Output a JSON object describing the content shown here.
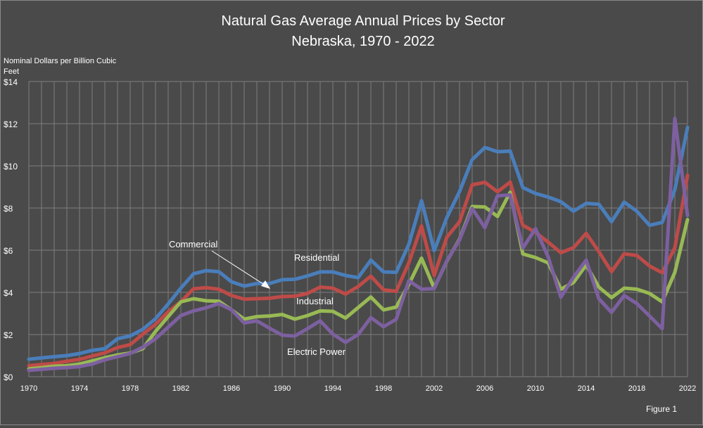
{
  "chart_data": {
    "type": "line",
    "title_line1": "Natural Gas Average Annual Prices by Sector",
    "title_line2": "Nebraska, 1970 - 2022",
    "ylabel_line1": "Nominal Dollars per Billion Cubic",
    "ylabel_line2": "Feet",
    "footnote": "Figure 1",
    "xlim": [
      1970,
      2022
    ],
    "ylim": [
      0,
      14
    ],
    "yticks": [
      0,
      2,
      4,
      6,
      8,
      10,
      12,
      14
    ],
    "ytick_labels": [
      "$0",
      "$2",
      "$4",
      "$6",
      "$8",
      "$10",
      "$12",
      "$14"
    ],
    "xticks": [
      1970,
      1974,
      1978,
      1982,
      1986,
      1990,
      1994,
      1998,
      2002,
      2006,
      2010,
      2014,
      2018,
      2022
    ],
    "xtick_labels": [
      "1970",
      "1974",
      "1978",
      "1982",
      "1986",
      "1990",
      "1994",
      "1998",
      "2002",
      "2006",
      "2010",
      "2014",
      "2018",
      "2022"
    ],
    "grid": true,
    "x": [
      1970,
      1971,
      1972,
      1973,
      1974,
      1975,
      1976,
      1977,
      1978,
      1979,
      1980,
      1981,
      1982,
      1983,
      1984,
      1985,
      1986,
      1987,
      1988,
      1989,
      1990,
      1991,
      1992,
      1993,
      1994,
      1995,
      1996,
      1997,
      1998,
      1999,
      2000,
      2001,
      2002,
      2003,
      2004,
      2005,
      2006,
      2007,
      2008,
      2009,
      2010,
      2011,
      2012,
      2013,
      2014,
      2015,
      2016,
      2017,
      2018,
      2019,
      2020,
      2021,
      2022
    ],
    "series": [
      {
        "name": "Residential",
        "color": "#4a7ebb",
        "values": [
          0.83,
          0.89,
          0.95,
          1.0,
          1.1,
          1.25,
          1.33,
          1.8,
          1.93,
          2.25,
          2.75,
          3.45,
          4.2,
          4.88,
          5.03,
          4.98,
          4.5,
          4.3,
          4.42,
          4.42,
          4.6,
          4.62,
          4.78,
          4.97,
          4.97,
          4.8,
          4.7,
          5.53,
          4.97,
          4.95,
          6.28,
          8.35,
          5.98,
          7.55,
          8.78,
          10.3,
          10.87,
          10.67,
          10.7,
          8.97,
          8.69,
          8.52,
          8.3,
          7.85,
          8.22,
          8.18,
          7.35,
          8.28,
          7.85,
          7.18,
          7.32,
          8.87,
          11.82
        ]
      },
      {
        "name": "Commercial",
        "color": "#be4b48",
        "values": [
          0.52,
          0.58,
          0.63,
          0.73,
          0.82,
          0.98,
          1.13,
          1.38,
          1.52,
          2.02,
          2.48,
          3.08,
          3.55,
          4.17,
          4.22,
          4.15,
          3.85,
          3.68,
          3.7,
          3.72,
          3.8,
          3.82,
          3.95,
          4.25,
          4.2,
          3.92,
          4.28,
          4.77,
          4.12,
          4.05,
          5.4,
          7.15,
          4.8,
          6.62,
          7.35,
          9.1,
          9.22,
          8.77,
          9.23,
          7.18,
          6.85,
          6.38,
          5.88,
          6.12,
          6.8,
          5.93,
          4.98,
          5.83,
          5.75,
          5.25,
          4.93,
          6.12,
          9.55
        ]
      },
      {
        "name": "Industrial",
        "color": "#98b954",
        "values": [
          0.37,
          0.43,
          0.5,
          0.52,
          0.6,
          0.75,
          0.9,
          1.03,
          1.12,
          1.33,
          2.15,
          2.85,
          3.55,
          3.7,
          3.6,
          3.58,
          3.17,
          2.73,
          2.85,
          2.88,
          2.95,
          2.73,
          2.9,
          3.12,
          3.1,
          2.78,
          3.28,
          3.78,
          3.17,
          3.3,
          4.38,
          5.62,
          4.2,
          5.48,
          6.52,
          8.07,
          8.05,
          7.6,
          8.75,
          5.82,
          5.65,
          5.4,
          4.15,
          4.47,
          5.3,
          4.25,
          3.75,
          4.2,
          4.15,
          3.95,
          3.55,
          4.95,
          7.45
        ]
      },
      {
        "name": "Electric Power",
        "color": "#7d60a0",
        "values": [
          0.3,
          0.35,
          0.4,
          0.43,
          0.48,
          0.6,
          0.8,
          0.95,
          1.1,
          1.4,
          1.8,
          2.35,
          2.9,
          3.12,
          3.27,
          3.47,
          3.17,
          2.55,
          2.65,
          2.3,
          1.97,
          1.93,
          2.28,
          2.65,
          2.02,
          1.63,
          2.0,
          2.8,
          2.37,
          2.72,
          4.55,
          4.15,
          4.18,
          5.5,
          6.48,
          7.98,
          7.07,
          8.58,
          8.62,
          6.1,
          7.02,
          5.68,
          3.77,
          4.72,
          5.53,
          3.7,
          3.05,
          3.85,
          3.47,
          2.88,
          2.28,
          12.25,
          7.65
        ]
      }
    ],
    "annotations": [
      {
        "text": "Commercial",
        "points_to": "Commercial"
      },
      {
        "text": "Residential",
        "labels": "Residential"
      },
      {
        "text": "Industrial",
        "labels": "Industrial"
      },
      {
        "text": "Electric Power",
        "labels": "Electric Power"
      }
    ]
  }
}
